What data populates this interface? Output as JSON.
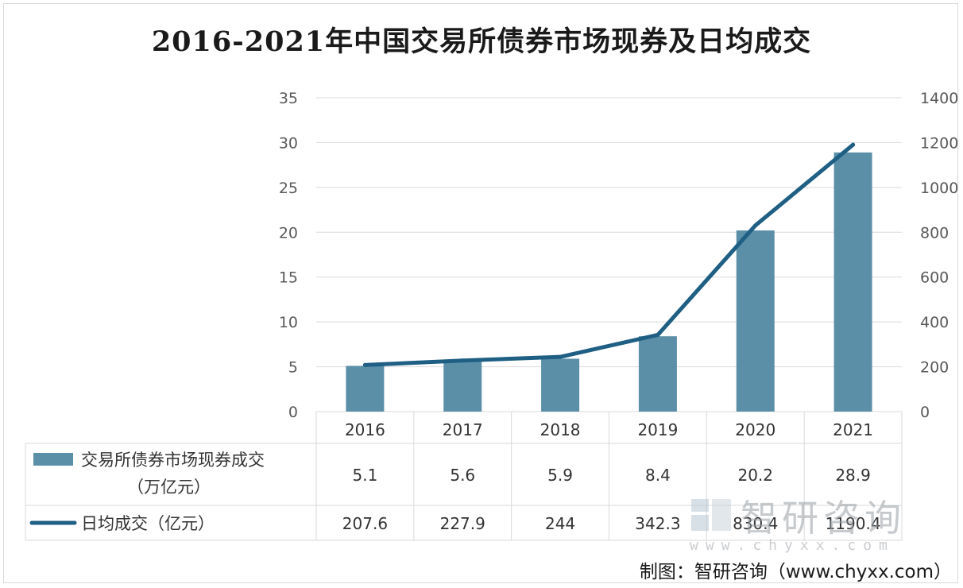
{
  "title": "2016-2021年中国交易所债券市场现券及日均成交",
  "source": "制图：智研咨询（www.chyxx.com）",
  "watermark": {
    "name": "智研咨询",
    "url": "www.chyxx.com"
  },
  "colors": {
    "bar": "#5b8fa8",
    "line": "#1f5f84",
    "grid": "#d9d9d9"
  },
  "chart_data": {
    "type": "bar",
    "categories": [
      "2016",
      "2017",
      "2018",
      "2019",
      "2020",
      "2021"
    ],
    "series": [
      {
        "name": "交易所债券市场现券成交（万亿元）",
        "name_lines": [
          "交易所债券市场现券成交",
          "（万亿元）"
        ],
        "type": "bar",
        "axis": "left",
        "values": [
          5.1,
          5.6,
          5.9,
          8.4,
          20.2,
          28.9
        ],
        "labels": [
          "5.1",
          "5.6",
          "5.9",
          "8.4",
          "20.2",
          "28.9"
        ]
      },
      {
        "name": "日均成交（亿元）",
        "type": "line",
        "axis": "right",
        "values": [
          207.6,
          227.9,
          244,
          342.3,
          830.4,
          1190.4
        ],
        "labels": [
          "207.6",
          "227.9",
          "244",
          "342.3",
          "830.4",
          "1190.4"
        ]
      }
    ],
    "y_left": {
      "ylim": [
        0,
        35
      ],
      "ticks": [
        "0",
        "5",
        "10",
        "15",
        "20",
        "25",
        "30",
        "35"
      ]
    },
    "y_right": {
      "ylim": [
        0,
        1400
      ],
      "ticks": [
        "0",
        "200",
        "400",
        "600",
        "800",
        "1000",
        "1200",
        "1400"
      ]
    },
    "grid": true,
    "legend": "bottom-data-table"
  }
}
